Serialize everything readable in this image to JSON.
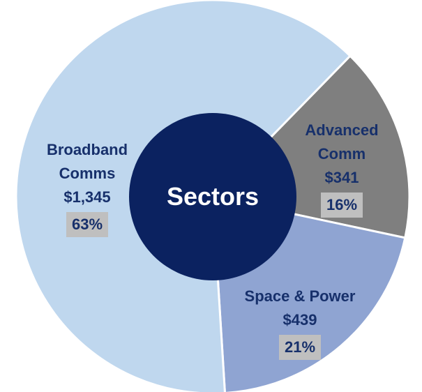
{
  "chart_data": {
    "type": "donut",
    "center_label": "Sectors",
    "categories": [
      "Advanced Comm",
      "Space & Power",
      "Broadband Comms"
    ],
    "values": [
      341,
      439,
      1345
    ],
    "value_labels": [
      "$341",
      "$439",
      "$1,345"
    ],
    "shares": [
      16,
      21,
      63
    ],
    "share_labels": [
      "16%",
      "21%",
      "63%"
    ],
    "colors": [
      "#7f7f7f",
      "#8fa4d2",
      "#bfd7ee"
    ],
    "center_color": "#0b2260"
  }
}
